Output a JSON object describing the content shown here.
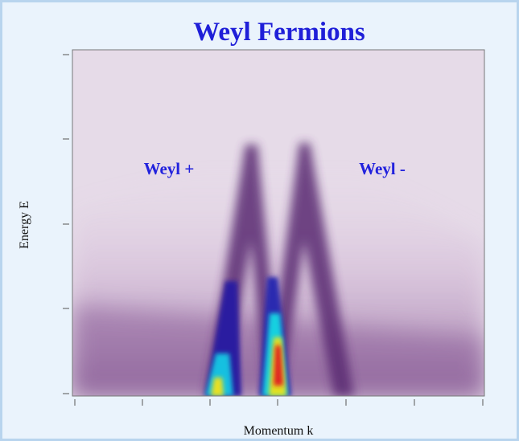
{
  "chart_data": {
    "type": "heatmap",
    "title": "Weyl Fermions",
    "xlabel": "Momentum k",
    "ylabel": "Energy E",
    "annotations": [
      "Weyl +",
      "Weyl -"
    ]
  }
}
